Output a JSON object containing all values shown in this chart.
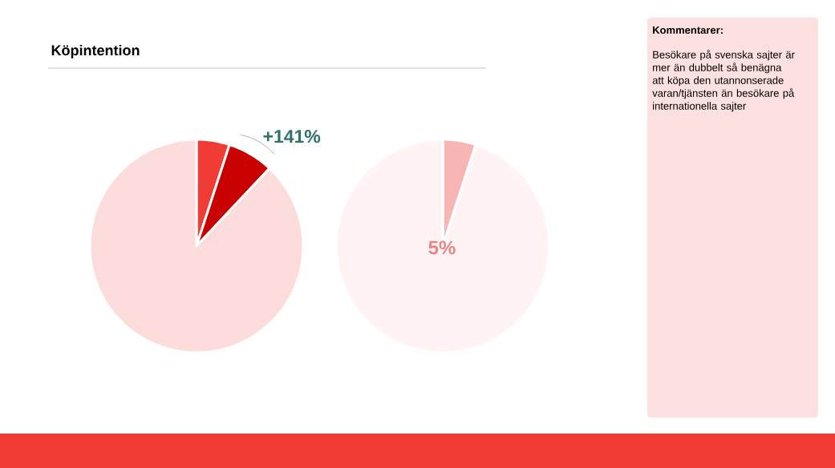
{
  "chart_data": [
    {
      "type": "pie",
      "title": "Köpintention",
      "categories": [
        null,
        null,
        null
      ],
      "values": [
        5,
        7,
        88
      ],
      "colors": [
        "#f03c35",
        "#c80000",
        "#fddcdc"
      ],
      "annotations": [
        "+141%"
      ]
    },
    {
      "type": "pie",
      "categories": [
        null,
        null
      ],
      "values": [
        5,
        95
      ],
      "colors": [
        "#f7b5b5",
        "#fff4f3"
      ],
      "annotations": [
        "5%"
      ]
    },
    {
      "type": "other",
      "title": "Kommentarer:",
      "annotations": [
        "Besökare på svenska sajter är mer än dubbelt så benägna att köpa den utannonserade varan/tjänsten än besökare på internationella sajter"
      ]
    }
  ]
}
